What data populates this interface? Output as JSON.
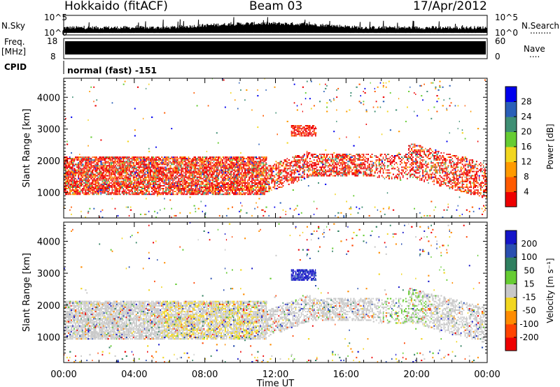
{
  "header": {
    "station": "Hokkaido (fitACF)",
    "beam": "Beam 03",
    "date": "17/Apr/2012"
  },
  "left_labels": {
    "nsky": "N.Sky",
    "freq": "Freq.",
    "freq_unit": "[MHz]",
    "cpid": "CPID"
  },
  "right_labels": {
    "nsearch": "N.Search",
    "nsearch_dots": "........",
    "nave": "Nave",
    "nave_dots": "...."
  },
  "cpid_text": "normal (fast) -151",
  "chart_data": [
    {
      "type": "line",
      "name": "noise-panel",
      "left_axis": {
        "label": "N.Sky",
        "ticks": [
          "10^5",
          "10^0"
        ],
        "scale": "log"
      },
      "right_axis": {
        "label": "N.Search",
        "ticks": [
          "10^5",
          "10^0"
        ],
        "scale": "log"
      },
      "xlim_hours": [
        0,
        24
      ]
    },
    {
      "type": "line",
      "name": "freq-nave-panel",
      "left_axis": {
        "label": "Freq. [MHz]",
        "ticks": [
          18,
          8
        ],
        "range": [
          8,
          18
        ]
      },
      "right_axis": {
        "label": "Nave",
        "ticks": [
          60,
          0
        ],
        "range": [
          0,
          60
        ]
      },
      "xlim_hours": [
        0,
        24
      ]
    },
    {
      "type": "heatmap",
      "name": "power",
      "ylabel": "Slant Range [km]",
      "ylim": [
        200,
        4600
      ],
      "yticks": [
        1000,
        2000,
        3000,
        4000
      ],
      "xlim_hours": [
        0,
        24
      ],
      "colorbar": {
        "label": "Power [dB]",
        "ticks": [
          4,
          8,
          12,
          16,
          20,
          24,
          28
        ],
        "colors": [
          "#0000ee",
          "#2a5fb8",
          "#3f8f74",
          "#66cc33",
          "#f2d61f",
          "#ff9a00",
          "#ff5a00",
          "#ee0000"
        ]
      }
    },
    {
      "type": "heatmap",
      "name": "velocity",
      "ylabel": "Slant Range [km]",
      "ylim": [
        200,
        4600
      ],
      "yticks": [
        1000,
        2000,
        3000,
        4000
      ],
      "xlim_hours": [
        0,
        24
      ],
      "colorbar": {
        "label": "Velocity [m s⁻¹]",
        "ticks": [
          200,
          100,
          50,
          15,
          -15,
          -50,
          -100,
          -200
        ],
        "colors": [
          "#1515c8",
          "#2a4fb0",
          "#2f7f5f",
          "#66cc33",
          "#c8c8c8",
          "#f2d61f",
          "#ff8c00",
          "#ff4400",
          "#ee0000"
        ]
      }
    }
  ],
  "xaxis": {
    "label": "Time UT",
    "ticks": [
      "00:00",
      "04:00",
      "08:00",
      "12:00",
      "16:00",
      "20:00",
      "00:00"
    ]
  },
  "colors": {
    "gray_scatter": "#c8c8c8",
    "axis": "#000000"
  }
}
